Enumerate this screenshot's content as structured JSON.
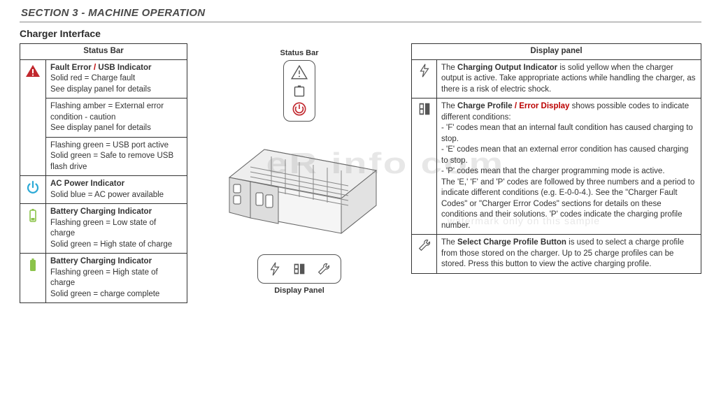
{
  "section_header": "SECTION 3 - MACHINE OPERATION",
  "subtitle": "Charger Interface",
  "watermark1": "eR             info    com",
  "watermark2": "watermark only on this sample",
  "status_bar": {
    "header": "Status Bar",
    "rows": [
      {
        "icon": "warning-triangle",
        "subs": [
          {
            "title_a": "Fault Error",
            "title_b": "USB Indicator",
            "lines": "Solid red = Charge fault\nSee display panel for details"
          },
          {
            "lines": "Flashing amber = External error condition - caution\nSee display panel for details"
          },
          {
            "lines": "Flashing green = USB port active\nSolid green = Safe to remove USB flash drive"
          }
        ]
      },
      {
        "icon": "power",
        "subs": [
          {
            "title_a": "AC Power Indicator",
            "lines": "Solid blue = AC power available"
          }
        ]
      },
      {
        "icon": "battery-low",
        "subs": [
          {
            "title_a": "Battery Charging Indicator",
            "lines": "Flashing green = Low state of charge\nSolid green = High state of charge"
          }
        ]
      },
      {
        "icon": "battery-full",
        "subs": [
          {
            "title_a": "Battery Charging Indicator",
            "lines": "Flashing green = High state of charge\nSolid green = charge complete"
          }
        ]
      }
    ]
  },
  "diagram": {
    "label_status": "Status Bar",
    "label_display": "Display Panel"
  },
  "display_panel": {
    "header": "Display panel",
    "rows": [
      {
        "icon": "bolt",
        "title_a": "Charging Output Indicator",
        "body": " is solid yellow when the charger output is active. Take appropriate actions while handling the charger, as there is a risk of electric shock."
      },
      {
        "icon": "lcd",
        "title_a": "Charge Profile",
        "title_b": "Error Display",
        "body": " shows possible codes to indicate different conditions:",
        "bullets": [
          "‑ 'F' codes mean that an internal fault condition has caused charging to stop.",
          "‑ 'E' codes mean that an external error condition has caused charging to stop.",
          "‑ 'P' codes mean that the charger programming mode is active."
        ],
        "tail": "The 'E,' 'F' and 'P' codes are followed by three numbers and a period to indicate different conditions (e.g. E-0-0-4.). See the \"Charger Fault Codes\" or \"Charger Error Codes\" sections for details on these conditions and their solutions. 'P' codes indicate the charging profile number."
      },
      {
        "icon": "wrench",
        "title_a": "Select Charge Profile Button",
        "body": " is used to select a charge profile from those stored on the charger. Up to 25 charge profiles can be stored. Press this button to view the active charging profile."
      }
    ]
  },
  "colors": {
    "warn_red": "#c1272d",
    "power_blue": "#2aa9d6",
    "batt_green": "#8bc34a",
    "line": "#555"
  }
}
